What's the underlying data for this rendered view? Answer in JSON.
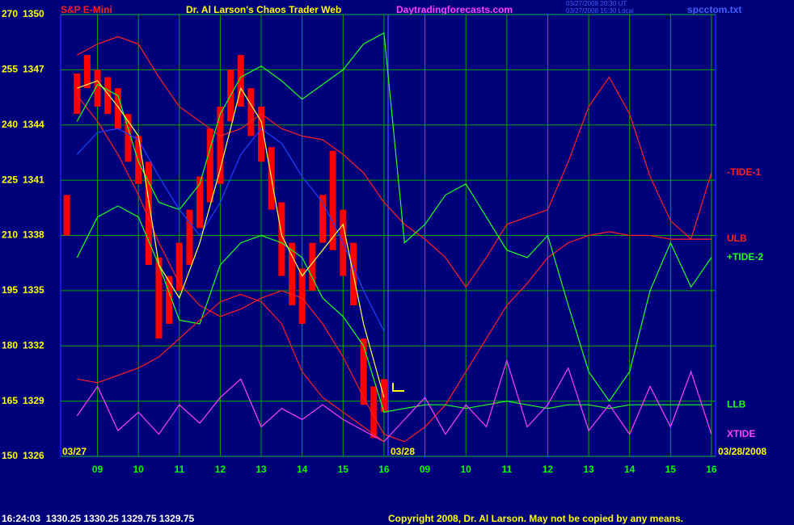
{
  "chart_data": {
    "type": "line",
    "symbol": "S&P E-Mini",
    "title": "Dr. Al Larson's Chaos Trader Web",
    "site": "Daytradingforecasts.com",
    "timestamps": [
      "03/27/2008 20:30 UT",
      "03/27/2008 15:30 Local"
    ],
    "file": "spcctom.txt",
    "status": "16:24:03  1330.25 1330.25 1329.75 1329.75",
    "copyright": "Copyright 2008, Dr. Al Larson. May not be copied by any means.",
    "date_labels": [
      "03/27",
      "03/28",
      "03/28/2008"
    ],
    "grid": true,
    "xlim": [
      8.1,
      24.1
    ],
    "xticks": [
      {
        "value": 9,
        "label": "09"
      },
      10,
      11,
      12,
      13,
      14,
      15,
      16,
      {
        "value": 17,
        "label": "09"
      },
      {
        "value": 18,
        "label": "10"
      },
      {
        "value": 19,
        "label": "11"
      },
      {
        "value": 20,
        "label": "12"
      },
      {
        "value": 21,
        "label": "13"
      },
      {
        "value": 22,
        "label": "14"
      },
      {
        "value": 23,
        "label": "15"
      },
      {
        "value": 24,
        "label": "16"
      }
    ],
    "ylim": [
      150,
      270
    ],
    "yticks": [
      150,
      165,
      180,
      195,
      210,
      225,
      240,
      255,
      270
    ],
    "y2lim": [
      1326,
      1350
    ],
    "y2ticks": [
      1326,
      1329,
      1332,
      1335,
      1338,
      1341,
      1344,
      1347,
      1350
    ],
    "x": [
      8.5,
      9,
      9.5,
      10,
      10.5,
      11,
      11.5,
      12,
      12.5,
      13,
      13.5,
      14,
      14.5,
      15,
      15.5,
      16,
      16.5,
      17,
      17.5,
      18,
      18.5,
      19,
      19.5,
      20,
      20.5,
      21,
      21.5,
      22,
      22.5,
      23,
      23.5,
      24
    ],
    "series": [
      {
        "name": "-TIDE-1",
        "color": "#ff2020",
        "values": [
          259,
          262,
          264,
          262,
          253,
          245,
          241,
          237,
          239,
          243,
          239,
          237,
          236,
          232,
          227,
          219,
          213,
          209,
          204,
          196,
          204,
          213,
          215,
          217,
          230,
          245,
          253,
          243,
          226,
          214,
          209,
          227
        ]
      },
      {
        "name": "ULB",
        "color": "#ff2020",
        "values": [
          248,
          241,
          232,
          221,
          208,
          197,
          191,
          188,
          190,
          193,
          195,
          193,
          186,
          177,
          166,
          156,
          154,
          158,
          164,
          173,
          182,
          191,
          197,
          204,
          208,
          210,
          211,
          210,
          210,
          209,
          209,
          209
        ]
      },
      {
        "name": "+TIDE-2",
        "color": "#20ff20",
        "values": [
          241,
          251,
          248,
          230,
          219,
          217,
          224,
          243,
          253,
          256,
          252,
          247,
          251,
          255,
          262,
          265,
          208,
          213,
          221,
          224,
          215,
          206,
          204,
          210,
          191,
          173,
          165,
          173,
          195,
          208,
          196,
          204
        ]
      },
      {
        "name": "LLB",
        "color": "#20ff20",
        "values": [
          204,
          215,
          218,
          215,
          202,
          187,
          186,
          202,
          208,
          210,
          208,
          204,
          193,
          188,
          180,
          162,
          163,
          164,
          164,
          163,
          164,
          165,
          164,
          163,
          164,
          164,
          163,
          164,
          164,
          164,
          164,
          164
        ]
      },
      {
        "name": "XTIDE",
        "color": "#ff40ff",
        "values": [
          161,
          169,
          157,
          162,
          156,
          164,
          159,
          166,
          171,
          158,
          163,
          160,
          164,
          160,
          157,
          154,
          160,
          166,
          156,
          164,
          158,
          176,
          158,
          164,
          174,
          157,
          164,
          156,
          169,
          158,
          173,
          156
        ]
      },
      {
        "color": "#2040ff",
        "values": [
          232,
          238,
          239,
          236,
          226,
          217,
          210,
          219,
          232,
          239,
          235,
          226,
          219,
          208,
          195,
          184,
          null,
          null,
          null,
          null,
          null,
          null,
          null,
          null,
          null,
          null,
          null,
          null,
          null,
          null,
          null,
          null
        ]
      },
      {
        "color": "#ffff40",
        "values": [
          250,
          252,
          245,
          237,
          202,
          193,
          208,
          228,
          250,
          241,
          210,
          199,
          206,
          213,
          186,
          166,
          null,
          null,
          null,
          null,
          null,
          null,
          null,
          null,
          null,
          null,
          null,
          null,
          null,
          null,
          null,
          null
        ]
      },
      {
        "color": "#ff2020",
        "values": [
          171,
          170,
          172,
          174,
          177,
          182,
          187,
          192,
          194,
          192,
          186,
          173,
          166,
          162,
          158,
          154,
          null,
          null,
          null,
          null,
          null,
          null,
          null,
          null,
          null,
          null,
          null,
          null,
          null,
          null,
          null,
          null
        ]
      }
    ],
    "price": {
      "color": "#ff0000",
      "x": [
        8.25,
        8.5,
        8.75,
        9,
        9.25,
        9.5,
        9.75,
        10,
        10.25,
        10.5,
        10.75,
        11,
        11.25,
        11.5,
        11.75,
        12,
        12.25,
        12.5,
        12.75,
        13,
        13.25,
        13.5,
        13.75,
        14,
        14.25,
        14.5,
        14.75,
        15,
        15.25,
        15.5,
        15.75,
        16
      ],
      "high": [
        221,
        254,
        259,
        255,
        253,
        250,
        243,
        237,
        230,
        204,
        199,
        208,
        217,
        226,
        239,
        245,
        255,
        259,
        250,
        245,
        234,
        219,
        208,
        201,
        208,
        221,
        233,
        217,
        208,
        182,
        169,
        171
      ],
      "low": [
        210,
        243,
        250,
        245,
        243,
        239,
        230,
        224,
        202,
        182,
        186,
        195,
        202,
        212,
        219,
        224,
        241,
        245,
        237,
        230,
        217,
        199,
        191,
        186,
        195,
        208,
        206,
        199,
        191,
        164,
        155,
        162
      ]
    }
  }
}
